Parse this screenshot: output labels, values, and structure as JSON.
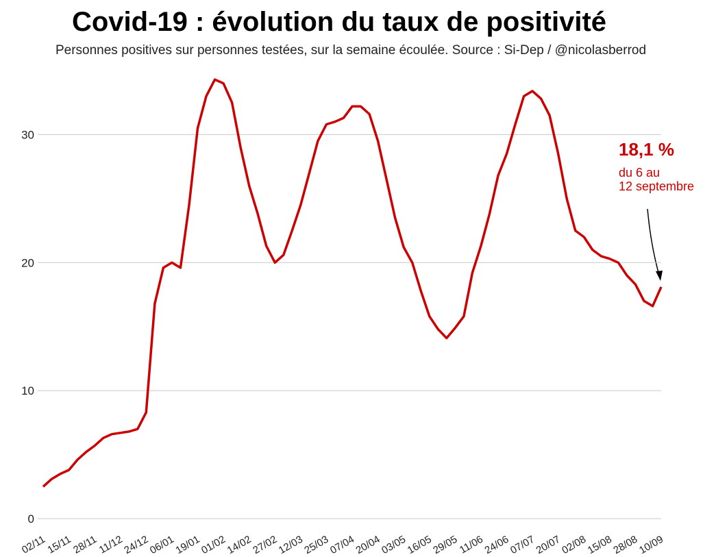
{
  "chart_data": {
    "type": "line",
    "title": "Covid-19 : évolution du taux de positivité",
    "subtitle": "Personnes positives sur personnes testées, sur la semaine écoulée. Source : Si-Dep / @nicolasberrod",
    "annotation": {
      "value_text": "18,1 %",
      "lines": [
        "du 6 au",
        "12 septembre"
      ]
    },
    "categories": [
      "02/11",
      null,
      null,
      "15/11",
      null,
      null,
      "28/11",
      null,
      null,
      "11/12",
      null,
      null,
      "24/12",
      null,
      null,
      "06/01",
      null,
      null,
      "19/01",
      null,
      null,
      "01/02",
      null,
      null,
      "14/02",
      null,
      null,
      "27/02",
      null,
      null,
      "12/03",
      null,
      null,
      "25/03",
      null,
      null,
      "07/04",
      null,
      null,
      "20/04",
      null,
      null,
      "03/05",
      null,
      null,
      "16/05",
      null,
      null,
      "29/05",
      null,
      null,
      "11/06",
      null,
      null,
      "24/06",
      null,
      null,
      "07/07",
      null,
      null,
      "20/07",
      null,
      null,
      "02/08",
      null,
      null,
      "15/08",
      null,
      null,
      "28/08",
      null,
      null,
      "10/09"
    ],
    "series": [
      {
        "color": "#cc0000",
        "values": [
          2.5,
          3.1,
          3.5,
          3.8,
          4.6,
          5.2,
          5.7,
          6.3,
          6.6,
          6.7,
          6.8,
          7.0,
          8.3,
          16.8,
          19.6,
          20.0,
          19.6,
          24.5,
          30.5,
          33.0,
          34.3,
          34.0,
          32.5,
          29.0,
          26.0,
          23.8,
          21.3,
          20.0,
          20.6,
          22.5,
          24.5,
          27.0,
          29.5,
          30.8,
          31.0,
          31.3,
          32.2,
          32.2,
          31.6,
          29.5,
          26.5,
          23.5,
          21.2,
          20.0,
          17.8,
          15.8,
          14.8,
          14.1,
          14.9,
          15.8,
          19.2,
          21.3,
          23.8,
          26.8,
          28.5,
          30.8,
          33.0,
          33.4,
          32.8,
          31.5,
          28.5,
          25.0,
          22.5,
          22.0,
          21.0,
          20.5,
          20.3,
          20.0,
          19.0,
          18.3,
          17.0,
          16.6,
          18.1
        ]
      }
    ],
    "ylim": [
      0,
      35
    ],
    "yticks": [
      0,
      10,
      20,
      30
    ],
    "grid": true
  }
}
